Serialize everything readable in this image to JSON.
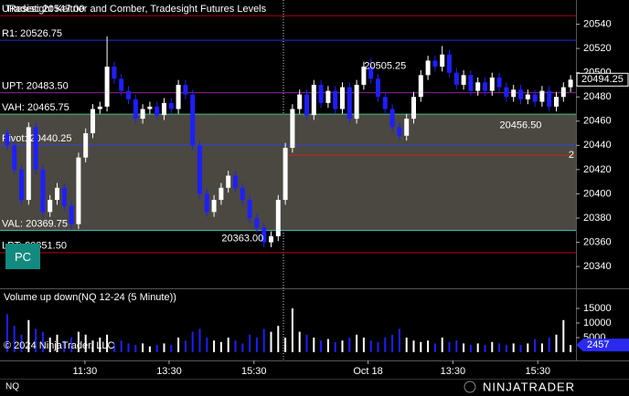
{
  "chart_data": {
    "type": "candlestick",
    "title": "Tradesight Keltner and Comber, Tradesight Futures Levels",
    "open": [
      20450,
      20440,
      20420,
      20395,
      20455,
      20420,
      20385,
      20395,
      20405,
      20390,
      20375,
      20430,
      20450,
      20470,
      20472,
      20505,
      20495,
      20485,
      20478,
      20462,
      20470,
      20472,
      20465,
      20475,
      20470,
      20490,
      20482,
      20440,
      20400,
      20385,
      20395,
      20405,
      20415,
      20405,
      20395,
      20380,
      20372,
      20360,
      20365,
      20395,
      20438,
      20470,
      20482,
      20465,
      20490,
      20475,
      20485,
      20470,
      20488,
      20462,
      20490,
      20505,
      20495,
      20480,
      20470,
      20455,
      20448,
      20462,
      20480,
      20498,
      20510,
      20505,
      20515,
      20500,
      20490,
      20498,
      20485,
      20492,
      20485,
      20496,
      20488,
      20480,
      20486,
      20478,
      20482,
      20476,
      20485,
      20472,
      20480,
      20488
    ],
    "high": [
      20454,
      20444,
      20424,
      20459,
      20459,
      20424,
      20399,
      20409,
      20409,
      20394,
      20434,
      20454,
      20474,
      20476,
      20530,
      20509,
      20499,
      20489,
      20482,
      20474,
      20476,
      20476,
      20479,
      20479,
      20494,
      20494,
      20486,
      20444,
      20404,
      20399,
      20409,
      20419,
      20419,
      20409,
      20399,
      20384,
      20376,
      20369,
      20399,
      20442,
      20474,
      20486,
      20486,
      20494,
      20494,
      20489,
      20489,
      20492,
      20492,
      20494,
      20509,
      20512,
      20499,
      20484,
      20474,
      20459,
      20466,
      20484,
      20502,
      20514,
      20514,
      20522,
      20519,
      20504,
      20502,
      20502,
      20496,
      20496,
      20500,
      20500,
      20492,
      20490,
      20490,
      20486,
      20486,
      20489,
      20489,
      20484,
      20492,
      20498
    ],
    "low": [
      20436,
      20416,
      20391,
      20391,
      20416,
      20381,
      20381,
      20391,
      20386,
      20371,
      20371,
      20426,
      20446,
      20466,
      20468,
      20491,
      20481,
      20474,
      20458,
      20458,
      20466,
      20461,
      20461,
      20466,
      20466,
      20478,
      20436,
      20396,
      20381,
      20381,
      20391,
      20401,
      20401,
      20391,
      20376,
      20368,
      20356,
      20356,
      20361,
      20391,
      20434,
      20466,
      20461,
      20461,
      20471,
      20471,
      20466,
      20466,
      20458,
      20458,
      20486,
      20491,
      20476,
      20466,
      20451,
      20444,
      20444,
      20458,
      20476,
      20494,
      20501,
      20501,
      20496,
      20486,
      20486,
      20481,
      20481,
      20481,
      20481,
      20484,
      20476,
      20476,
      20474,
      20474,
      20472,
      20472,
      20468,
      20468,
      20476,
      20484
    ],
    "close": [
      20440,
      20420,
      20395,
      20455,
      20420,
      20385,
      20395,
      20405,
      20390,
      20375,
      20430,
      20450,
      20470,
      20472,
      20505,
      20495,
      20485,
      20478,
      20462,
      20470,
      20472,
      20465,
      20475,
      20470,
      20490,
      20482,
      20440,
      20400,
      20385,
      20395,
      20405,
      20415,
      20405,
      20395,
      20380,
      20372,
      20360,
      20365,
      20395,
      20438,
      20470,
      20482,
      20465,
      20490,
      20475,
      20485,
      20470,
      20488,
      20462,
      20490,
      20505,
      20495,
      20480,
      20470,
      20455,
      20448,
      20462,
      20480,
      20498,
      20510,
      20505,
      20515,
      20500,
      20490,
      20498,
      20485,
      20492,
      20485,
      20496,
      20488,
      20480,
      20486,
      20478,
      20482,
      20476,
      20485,
      20472,
      20480,
      20488,
      20494.25
    ],
    "up_color": "#ffffff",
    "down_color": "#1e1eff",
    "ylim": [
      20322,
      20560
    ],
    "yticks": [
      20340,
      20360,
      20380,
      20400,
      20420,
      20440,
      20460,
      20480,
      20500,
      20520,
      20540
    ],
    "xticks": [
      {
        "value": 10.9,
        "label": "11:30"
      },
      {
        "value": 22.7,
        "label": "13:30"
      },
      {
        "value": 34.6,
        "label": "15:30"
      },
      {
        "value": 50.6,
        "label": "Oct 18"
      },
      {
        "value": 62.5,
        "label": "13:30"
      },
      {
        "value": 74.4,
        "label": "15:30"
      }
    ],
    "levels": [
      {
        "label": "UResist: 20547.00",
        "value": 20547,
        "color": "#b00000"
      },
      {
        "label": "R1: 20526.75",
        "value": 20526.75,
        "color": "#2a2ad0"
      },
      {
        "label": "UPT: 20483.50",
        "value": 20483.5,
        "color": "#9020a0"
      },
      {
        "label": "VAH: 20465.75",
        "value": 20465.75,
        "color": "#40c080"
      },
      {
        "label": "Pivot: 20440.25",
        "value": 20440.25,
        "color": "#3040e0"
      },
      {
        "label": "VAL: 20369.75",
        "value": 20369.75,
        "color": "#40c0b0"
      },
      {
        "label": "LPT: 20351.50",
        "value": 20351.5,
        "color": "#c00000"
      },
      {
        "label": "2",
        "value": 20432,
        "color": "#d02020",
        "from": 39
      }
    ],
    "value_area_color": "#4a4840",
    "annotations": [
      {
        "label": "20505.25",
        "value": 20505.25,
        "index": 53,
        "color": "#30b030"
      },
      {
        "label": "20456.50",
        "value": 20456.5,
        "index": 72,
        "color": "#e03030"
      },
      {
        "label": "20363.00",
        "value": 20363,
        "index": 33,
        "color": "#e03030"
      }
    ],
    "volume": {
      "title": "Volume up down(NQ 12-24 (5 Minute))",
      "values": [
        13000,
        9000,
        6000,
        11000,
        8000,
        7000,
        5000,
        6000,
        4000,
        5000,
        7000,
        6000,
        4000,
        5000,
        6000,
        3000,
        4000,
        3000,
        2500,
        3000,
        2000,
        2500,
        3000,
        2500,
        5000,
        4000,
        7000,
        8000,
        5000,
        4000,
        3500,
        5000,
        4000,
        3000,
        6000,
        5000,
        8000,
        7000,
        9000,
        5000,
        15000,
        7000,
        6000,
        5000,
        4000,
        4500,
        3500,
        4000,
        5000,
        6000,
        5000,
        4000,
        3500,
        5000,
        6000,
        8000,
        5000,
        4000,
        3500,
        4000,
        3000,
        5000,
        3500,
        4000,
        3000,
        2500,
        3000,
        2500,
        3500,
        3000,
        2500,
        3000,
        2500,
        3000,
        4500,
        3000,
        5000,
        6000,
        11000,
        2457
      ],
      "ylim": [
        0,
        21250
      ],
      "yticks": [
        5000,
        10000,
        15000
      ]
    }
  },
  "instrument": "NQ",
  "copyright": "© 2024 NinjaTrader, LLC",
  "button": "PC",
  "brand": "NINJATRADER"
}
